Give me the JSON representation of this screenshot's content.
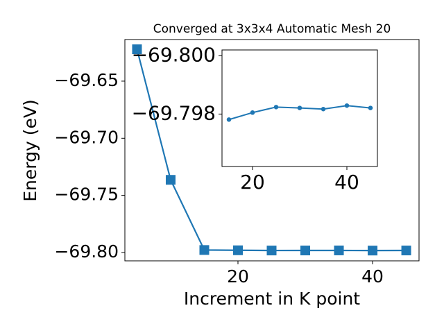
{
  "chart_data": [
    {
      "type": "line",
      "title": "Converged at 3x3x4 Automatic Mesh 20",
      "xlabel": "Increment in K point",
      "ylabel": "Energy (eV)",
      "x": [
        5,
        10,
        15,
        20,
        25,
        30,
        35,
        40,
        45
      ],
      "series": [
        {
          "color": "#1f77b4",
          "marker": "square",
          "values": [
            -69.6221,
            -69.7364,
            -69.79781,
            -69.79805,
            -69.79824,
            -69.79821,
            -69.79817,
            -69.79829,
            -69.79821
          ]
        }
      ],
      "xlim": [
        3.2,
        46.9
      ],
      "xticks": [
        20,
        40
      ],
      "ylim": [
        -69.8073,
        -69.6136
      ],
      "yticks": [
        {
          "value": -69.65,
          "label": "−69.65"
        },
        {
          "value": -69.7,
          "label": "−69.70"
        },
        {
          "value": -69.75,
          "label": "−69.75"
        },
        {
          "value": -69.8,
          "label": "−69.80"
        }
      ]
    },
    {
      "type": "line",
      "x": [
        15,
        20,
        25,
        30,
        35,
        40,
        45
      ],
      "series": [
        {
          "color": "#1f77b4",
          "marker": "circle",
          "values": [
            -69.79781,
            -69.79805,
            -69.79824,
            -69.79821,
            -69.79817,
            -69.79829,
            -69.79821
          ]
        }
      ],
      "xlim": [
        13.53,
        46.47
      ],
      "xticks": [
        20,
        40
      ],
      "ylim": [
        -69.7962,
        -69.8002
      ],
      "yticks": [
        {
          "value": -69.8,
          "label": "−69.800"
        },
        {
          "value": -69.798,
          "label": "−69.798"
        }
      ]
    }
  ]
}
